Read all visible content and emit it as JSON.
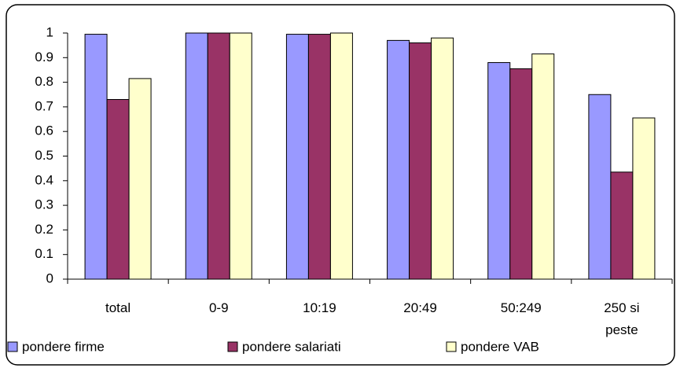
{
  "chart_data": {
    "type": "bar",
    "categories": [
      "total",
      "0-9",
      "10:19",
      "20:49",
      "50:249",
      "250 si peste"
    ],
    "series": [
      {
        "name": "pondere firme",
        "color": "#9999ff",
        "values": [
          0.995,
          1,
          0.995,
          0.97,
          0.88,
          0.75
        ]
      },
      {
        "name": "pondere salariati",
        "color": "#993366",
        "values": [
          0.73,
          1,
          0.995,
          0.96,
          0.855,
          0.435
        ]
      },
      {
        "name": "pondere VAB",
        "color": "#ffffcc",
        "values": [
          0.815,
          1,
          1,
          0.98,
          0.915,
          0.655
        ]
      }
    ],
    "ylim": [
      0,
      1
    ],
    "yticks": [
      0,
      0.1,
      0.2,
      0.3,
      0.4,
      0.5,
      0.6,
      0.7,
      0.8,
      0.9,
      1
    ],
    "grid": false,
    "legend": "bottom"
  }
}
